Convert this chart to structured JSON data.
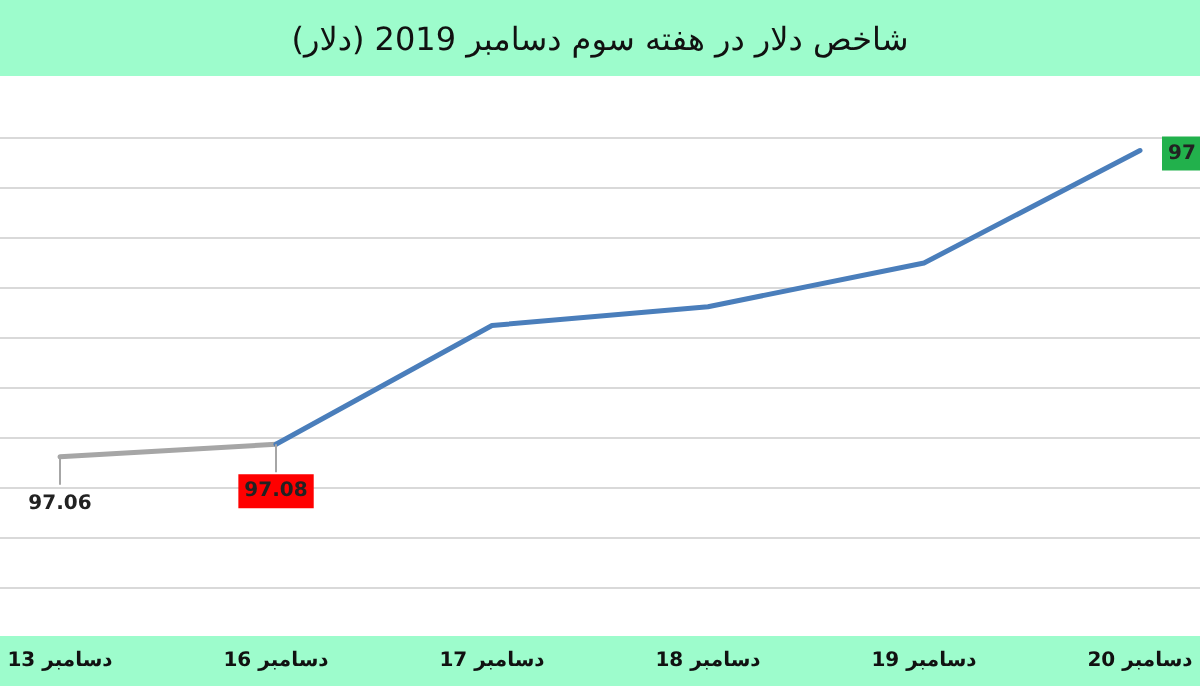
{
  "chart_data": {
    "type": "line",
    "title": "شاخص دلار در هفته سوم دسامبر 2019 (دلار)",
    "categories": [
      "13 دسامبر",
      "16 دسامبر",
      "17 دسامبر",
      "18 دسامبر",
      "19 دسامبر",
      "20 دسامبر"
    ],
    "series": [
      {
        "color": "#a6a6a6",
        "values": [
          97.06,
          97.08,
          null,
          null,
          null,
          null
        ],
        "value_labels": [
          "97.06",
          null,
          null,
          null,
          null,
          null
        ]
      },
      {
        "color": "#4a7ebb",
        "values": [
          null,
          97.08,
          97.27,
          97.3,
          97.37,
          97.55
        ],
        "value_labels": [
          null,
          "97.08",
          null,
          null,
          null,
          null
        ]
      }
    ],
    "annotations": [
      {
        "text": "97",
        "x": "20 دسامبر",
        "y": 97.55
      }
    ],
    "yticks": [
      {
        "value": 96.85,
        "label": null
      },
      {
        "value": 96.93,
        "label": null
      },
      {
        "value": 97.01,
        "label": null
      },
      {
        "value": 97.09,
        "label": null
      },
      {
        "value": 97.17,
        "label": null
      },
      {
        "value": 97.25,
        "label": null
      },
      {
        "value": 97.33,
        "label": null
      },
      {
        "value": 97.41,
        "label": null
      },
      {
        "value": 97.49,
        "label": null
      },
      {
        "value": 97.57,
        "label": null
      }
    ],
    "grid": "y",
    "tick_labels": "x"
  }
}
